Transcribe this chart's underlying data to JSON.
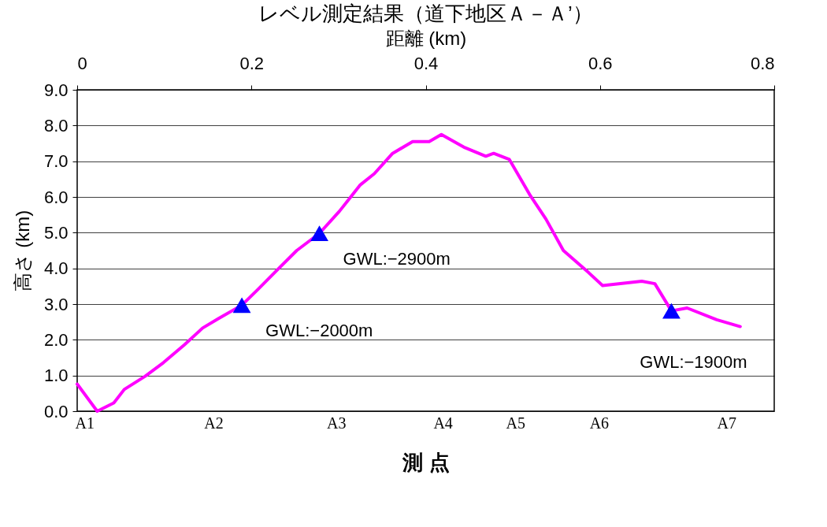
{
  "chart_data": {
    "type": "line",
    "title": "レベル測定結果（道下地区Ａ－Ａ’）",
    "xlabel": "距離 (km)",
    "ylabel": "高さ (km)",
    "xlim": [
      0,
      0.8
    ],
    "xticks": [
      0,
      0.2,
      0.4,
      0.6,
      0.8
    ],
    "ylim": [
      0,
      9
    ],
    "yticks": [
      {
        "value": 0,
        "label": "0.0"
      },
      {
        "value": 1,
        "label": "1.0"
      },
      {
        "value": 2,
        "label": "2.0"
      },
      {
        "value": 3,
        "label": "3.0"
      },
      {
        "value": 4,
        "label": "4.0"
      },
      {
        "value": 5,
        "label": "5.0"
      },
      {
        "value": 6,
        "label": "6.0"
      },
      {
        "value": 7,
        "label": "7.0"
      },
      {
        "value": 8,
        "label": "8.0"
      },
      {
        "value": 9,
        "label": "9.0"
      }
    ],
    "grid": "y",
    "series": [
      {
        "color": "#ff00ff",
        "x": [
          0,
          0.023,
          0.042,
          0.054,
          0.078,
          0.099,
          0.123,
          0.144,
          0.162,
          0.189,
          0.207,
          0.231,
          0.252,
          0.278,
          0.301,
          0.325,
          0.341,
          0.362,
          0.385,
          0.404,
          0.418,
          0.445,
          0.469,
          0.478,
          0.496,
          0.52,
          0.538,
          0.558,
          0.587,
          0.603,
          0.648,
          0.663,
          0.682,
          0.7,
          0.734,
          0.761
        ],
        "values": [
          0.76,
          0.0,
          0.23,
          0.61,
          0.98,
          1.36,
          1.86,
          2.33,
          2.59,
          2.97,
          3.4,
          3.99,
          4.5,
          4.98,
          5.6,
          6.34,
          6.65,
          7.22,
          7.55,
          7.55,
          7.75,
          7.38,
          7.14,
          7.22,
          7.05,
          6.04,
          5.38,
          4.5,
          3.88,
          3.52,
          3.64,
          3.57,
          2.81,
          2.89,
          2.56,
          2.37
        ]
      },
      {
        "type": "scatter",
        "color": "#0000ff",
        "marker": "triangle",
        "x": [
          0.189,
          0.278,
          0.682
        ],
        "values": [
          2.97,
          4.98,
          2.81
        ]
      }
    ],
    "annotations": [
      {
        "text": "GWL:−2000m",
        "x": 0.189,
        "y": 2.97
      },
      {
        "text": "GWL:−2900m",
        "x": 0.278,
        "y": 4.98
      },
      {
        "text": "GWL:−1900m",
        "x": 0.682,
        "y": 2.81
      },
      "A1",
      "A2",
      "A3",
      "A4",
      "A5",
      "A6",
      "A7",
      "測 点"
    ]
  }
}
